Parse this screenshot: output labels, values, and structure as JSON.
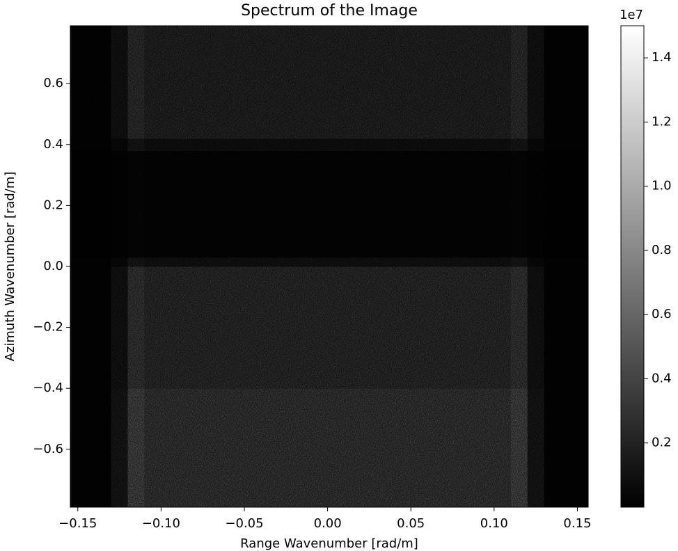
{
  "chart_data": {
    "type": "heatmap",
    "title": "Spectrum of the Image",
    "xlabel": "Range Wavenumber [rad/m]",
    "ylabel": "Azimuth Wavenumber [rad/m]",
    "xlim": [
      -0.1545,
      0.1565
    ],
    "ylim": [
      -0.79,
      0.79
    ],
    "xticks": [
      {
        "value": -0.15,
        "label": "−0.15"
      },
      {
        "value": -0.1,
        "label": "−0.10"
      },
      {
        "value": -0.05,
        "label": "−0.05"
      },
      {
        "value": 0,
        "label": "0.00"
      },
      {
        "value": 0.05,
        "label": "0.05"
      },
      {
        "value": 0.1,
        "label": "0.10"
      },
      {
        "value": 0.15,
        "label": "0.15"
      }
    ],
    "yticks": [
      {
        "value": -0.6,
        "label": "−0.6"
      },
      {
        "value": -0.4,
        "label": "−0.4"
      },
      {
        "value": -0.2,
        "label": "−0.2"
      },
      {
        "value": 0,
        "label": "0.0"
      },
      0.2,
      0.4,
      0.6
    ],
    "x_edges": [
      -0.1545,
      -0.13,
      -0.12,
      -0.11,
      0.11,
      0.12,
      0.13,
      0.1565
    ],
    "y_edges": [
      -0.79,
      -0.4,
      0.0,
      0.03,
      0.38,
      0.42,
      0.79
    ],
    "z": [
      [
        200000,
        1500000,
        4500000,
        3500000,
        4500000,
        1500000,
        200000
      ],
      [
        200000,
        1200000,
        3500000,
        2800000,
        3500000,
        1200000,
        200000
      ],
      [
        100000,
        600000,
        1500000,
        1200000,
        1500000,
        600000,
        100000
      ],
      [
        50000,
        200000,
        300000,
        250000,
        300000,
        200000,
        50000
      ],
      [
        100000,
        600000,
        1500000,
        1000000,
        1500000,
        600000,
        100000
      ],
      [
        200000,
        1200000,
        3000000,
        2300000,
        3000000,
        1200000,
        200000
      ]
    ],
    "cmap": "gray",
    "colorbar": {
      "clim": [
        0,
        15000000
      ],
      "offset_label": "1e7",
      "ticks": [
        {
          "value": 2000000,
          "label": "0.2"
        },
        {
          "value": 4000000,
          "label": "0.4"
        },
        {
          "value": 6000000,
          "label": "0.6"
        },
        {
          "value": 8000000,
          "label": "0.8"
        },
        {
          "value": 10000000,
          "label": "1.0"
        },
        {
          "value": 12000000,
          "label": "1.2"
        },
        {
          "value": 14000000,
          "label": "1.4"
        }
      ]
    }
  }
}
